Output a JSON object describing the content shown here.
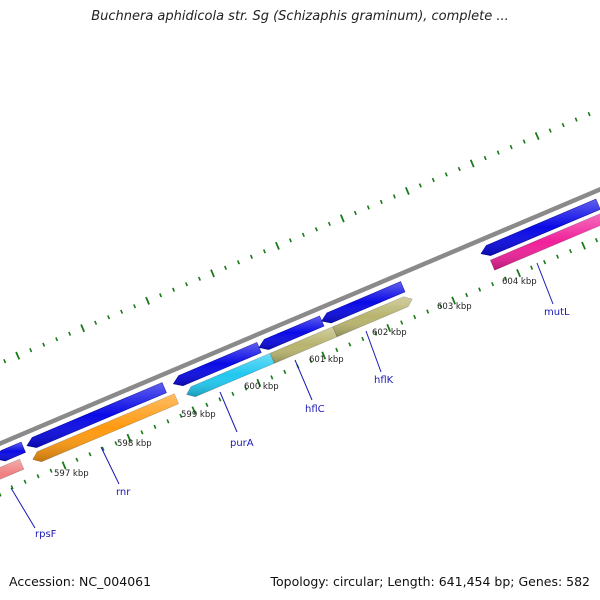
{
  "title": "Buchnera aphidicola str. Sg (Schizaphis graminum), complete ...",
  "footer": {
    "accession": "Accession: NC_004061",
    "summary": "Topology: circular; Length: 641,454 bp; Genes: 582"
  },
  "colors": {
    "backbone": "#8a8a8a",
    "forward_gene": "#0a0ae6",
    "tick": "#1a7a1a",
    "gene_label": "#1a1ab4",
    "scale_label": "#222222"
  },
  "scale_labels": [
    "597 kbp",
    "598 kbp",
    "599 kbp",
    "600 kbp",
    "601 kbp",
    "602 kbp",
    "603 kbp",
    "604 kbp"
  ],
  "genes": [
    {
      "name": "rpsF",
      "color": "#f08080"
    },
    {
      "name": "rnr",
      "color": "#ff9a10"
    },
    {
      "name": "purA",
      "color": "#20c8f0"
    },
    {
      "name": "hflC",
      "color": "#b8b46e"
    },
    {
      "name": "hflK",
      "color": "#b8b46e"
    },
    {
      "name": "mutL",
      "color": "#f0209a"
    }
  ]
}
